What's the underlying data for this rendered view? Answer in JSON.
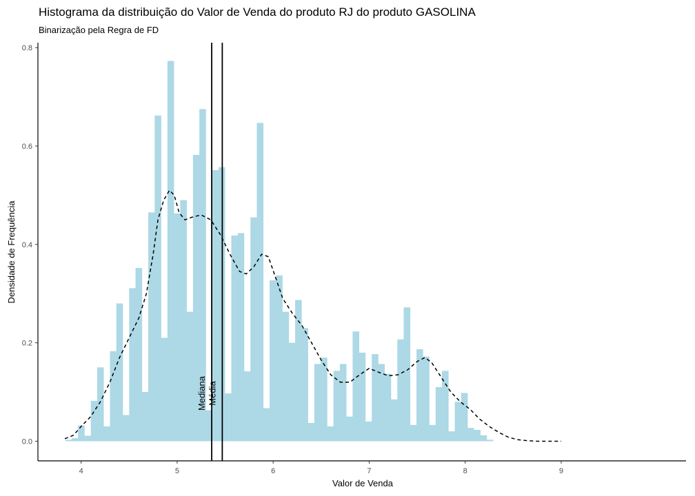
{
  "chart_data": {
    "type": "bar",
    "title": "Histograma da distribuição do Valor de Venda do produto RJ do produto GASOLINA",
    "subtitle": "Binarização pela Regra de FD",
    "xlabel": "Valor de Venda",
    "ylabel": "Densidade de Frequência",
    "xlim": [
      3.55,
      10.3
    ],
    "ylim": [
      -0.04,
      0.81
    ],
    "x_ticks": [
      4,
      5,
      6,
      7,
      8,
      9
    ],
    "x_tick_labels": [
      "4",
      "5",
      "6",
      "7",
      "8",
      "9"
    ],
    "y_ticks": [
      0.0,
      0.2,
      0.4,
      0.6,
      0.8
    ],
    "y_tick_labels": [
      "0.0",
      "0.2",
      "0.4",
      "0.6",
      "0.8"
    ],
    "grid": false,
    "bar_color": "#add8e6",
    "bin_start": 3.835,
    "bin_width": 0.0665,
    "values": [
      0.003,
      0.006,
      0.032,
      0.011,
      0.082,
      0.15,
      0.03,
      0.183,
      0.28,
      0.053,
      0.311,
      0.352,
      0.1,
      0.465,
      0.662,
      0.21,
      0.773,
      0.463,
      0.49,
      0.263,
      0.582,
      0.675,
      0.063,
      0.551,
      0.557,
      0.097,
      0.418,
      0.423,
      0.142,
      0.455,
      0.647,
      0.067,
      0.327,
      0.337,
      0.263,
      0.2,
      0.287,
      0.23,
      0.037,
      0.157,
      0.17,
      0.03,
      0.143,
      0.157,
      0.05,
      0.223,
      0.18,
      0.04,
      0.177,
      0.157,
      0.137,
      0.085,
      0.207,
      0.272,
      0.033,
      0.187,
      0.172,
      0.033,
      0.11,
      0.143,
      0.02,
      0.08,
      0.098,
      0.027,
      0.023,
      0.012,
      0.003
    ],
    "density": {
      "x": [
        3.83,
        3.92,
        4.0,
        4.1,
        4.2,
        4.3,
        4.4,
        4.5,
        4.6,
        4.68,
        4.75,
        4.8,
        4.86,
        4.92,
        4.97,
        5.02,
        5.08,
        5.15,
        5.25,
        5.35,
        5.45,
        5.55,
        5.65,
        5.72,
        5.8,
        5.88,
        5.95,
        6.03,
        6.1,
        6.2,
        6.3,
        6.4,
        6.5,
        6.6,
        6.7,
        6.8,
        6.9,
        7.0,
        7.1,
        7.2,
        7.3,
        7.4,
        7.5,
        7.58,
        7.65,
        7.75,
        7.85,
        7.95,
        8.05,
        8.15,
        8.25,
        8.35,
        8.45,
        8.55,
        8.65,
        8.75,
        8.85,
        9.0
      ],
      "y": [
        0.005,
        0.012,
        0.03,
        0.05,
        0.08,
        0.12,
        0.17,
        0.21,
        0.25,
        0.3,
        0.38,
        0.45,
        0.49,
        0.51,
        0.5,
        0.465,
        0.45,
        0.455,
        0.46,
        0.45,
        0.42,
        0.38,
        0.345,
        0.34,
        0.355,
        0.38,
        0.375,
        0.33,
        0.29,
        0.26,
        0.235,
        0.2,
        0.165,
        0.135,
        0.12,
        0.12,
        0.135,
        0.148,
        0.14,
        0.133,
        0.135,
        0.145,
        0.162,
        0.17,
        0.16,
        0.13,
        0.1,
        0.08,
        0.065,
        0.045,
        0.03,
        0.018,
        0.008,
        0.003,
        0.001,
        0.0,
        0.0,
        0.0
      ]
    },
    "vlines": [
      {
        "label": "Mediana",
        "x": 5.36
      },
      {
        "label": "Média",
        "x": 5.47
      }
    ]
  }
}
